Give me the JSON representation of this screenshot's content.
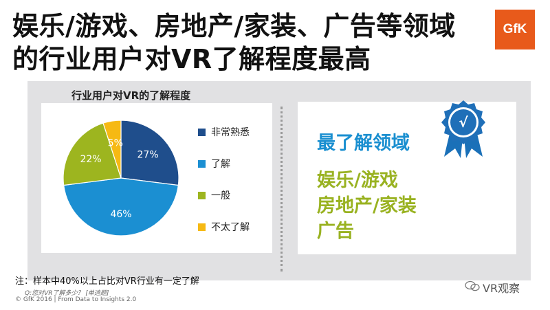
{
  "header": {
    "title_line1": "娱乐/游戏、房地产/家装、广告等领域",
    "title_line2": "的行业用户对VR了解程度最高",
    "logo_text": "GfK"
  },
  "chart_data": {
    "type": "pie",
    "title": "行业用户对VR的了解程度",
    "categories": [
      "非常熟悉",
      "了解",
      "一般",
      "不太了解"
    ],
    "values": [
      27,
      46,
      22,
      5
    ],
    "labels": [
      "27%",
      "46%",
      "22%",
      "5%"
    ],
    "colors": [
      "#1f4e8c",
      "#1b8fd2",
      "#9db51f",
      "#f6b913"
    ],
    "legend_position": "right"
  },
  "panel": {
    "heading": "最了解领域",
    "fields": [
      "娱乐/游戏",
      "房地产/家装",
      "广告"
    ],
    "badge_icon": "checkmark-ribbon-badge",
    "badge_mark": "√"
  },
  "footer": {
    "note": "注：样本中40%以上占比对VR行业有一定了解",
    "question": "Q:您对VR了解多少？ [单选题]",
    "copyright": "© GfK 2016 | From Data to Insights 2.0",
    "watermark": "VR观察"
  },
  "colors": {
    "panel_bg": "#e1e1e3",
    "heading_blue": "#1a8fd0",
    "field_green": "#99b221",
    "logo_orange": "#e85a1b"
  }
}
